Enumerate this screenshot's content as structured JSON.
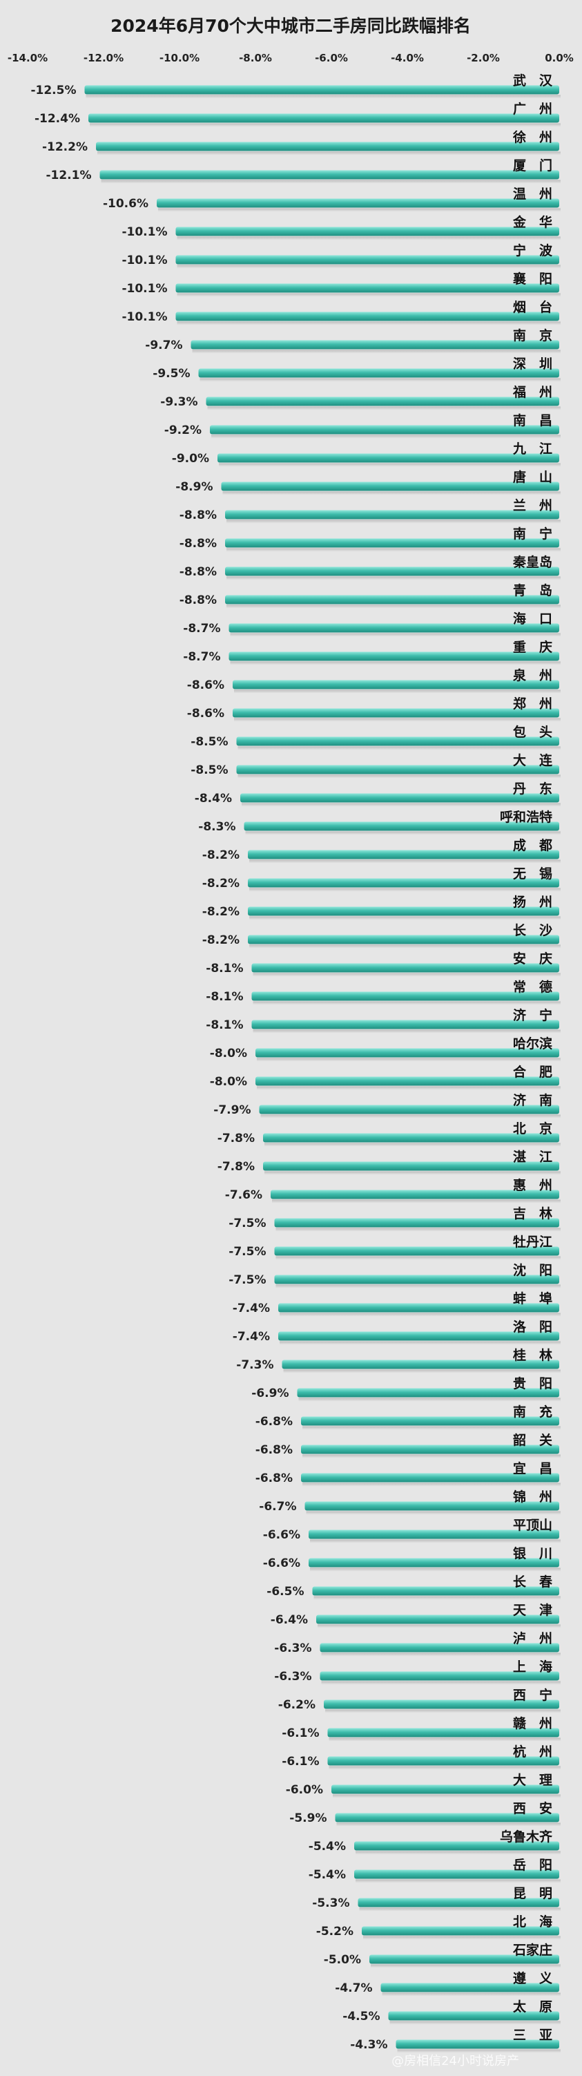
{
  "chart_data": {
    "type": "bar",
    "title": "2024年6月70个大中城市二手房同比跌幅排名",
    "orientation": "horizontal",
    "xlim": [
      -14,
      0
    ],
    "xticks": [
      "-14.0%",
      "-12.0%",
      "-10.0%",
      "-8.0%",
      "-6.0%",
      "-4.0%",
      "-2.0%",
      "0.0%"
    ],
    "grid": false,
    "colors": {
      "bar": "#3dbcab",
      "bar_light": "#7fe0d2",
      "bar_dark": "#1f8e80"
    },
    "categories": [
      "武　汉",
      "广　州",
      "徐　州",
      "厦　门",
      "温　州",
      "金　华",
      "宁　波",
      "襄　阳",
      "烟　台",
      "南　京",
      "深　圳",
      "福　州",
      "南　昌",
      "九　江",
      "唐　山",
      "兰　州",
      "南　宁",
      "秦皇岛",
      "青　岛",
      "海　口",
      "重　庆",
      "泉　州",
      "郑　州",
      "包　头",
      "大　连",
      "丹　东",
      "呼和浩特",
      "成　都",
      "无　锡",
      "扬　州",
      "长　沙",
      "安　庆",
      "常　德",
      "济　宁",
      "哈尔滨",
      "合　肥",
      "济　南",
      "北　京",
      "湛　江",
      "惠　州",
      "吉　林",
      "牡丹江",
      "沈　阳",
      "蚌　埠",
      "洛　阳",
      "桂　林",
      "贵　阳",
      "南　充",
      "韶　关",
      "宜　昌",
      "锦　州",
      "平顶山",
      "银　川",
      "长　春",
      "天　津",
      "泸　州",
      "上　海",
      "西　宁",
      "赣　州",
      "杭　州",
      "大　理",
      "西　安",
      "乌鲁木齐",
      "岳　阳",
      "昆　明",
      "北　海",
      "石家庄",
      "遵　义",
      "太　原",
      "三　亚"
    ],
    "values": [
      -12.5,
      -12.4,
      -12.2,
      -12.1,
      -10.6,
      -10.1,
      -10.1,
      -10.1,
      -10.1,
      -9.7,
      -9.5,
      -9.3,
      -9.2,
      -9.0,
      -8.9,
      -8.8,
      -8.8,
      -8.8,
      -8.8,
      -8.7,
      -8.7,
      -8.6,
      -8.6,
      -8.5,
      -8.5,
      -8.4,
      -8.3,
      -8.2,
      -8.2,
      -8.2,
      -8.2,
      -8.1,
      -8.1,
      -8.1,
      -8.0,
      -8.0,
      -7.9,
      -7.8,
      -7.8,
      -7.6,
      -7.5,
      -7.5,
      -7.5,
      -7.4,
      -7.4,
      -7.3,
      -6.9,
      -6.8,
      -6.8,
      -6.8,
      -6.7,
      -6.6,
      -6.6,
      -6.5,
      -6.4,
      -6.3,
      -6.3,
      -6.2,
      -6.1,
      -6.1,
      -6.0,
      -5.9,
      -5.4,
      -5.4,
      -5.3,
      -5.2,
      -5.0,
      -4.7,
      -4.5,
      -4.3
    ],
    "data_labels": [
      "-12.5%",
      "-12.4%",
      "-12.2%",
      "-12.1%",
      "-10.6%",
      "-10.1%",
      "-10.1%",
      "-10.1%",
      "-10.1%",
      "-9.7%",
      "-9.5%",
      "-9.3%",
      "-9.2%",
      "-9.0%",
      "-8.9%",
      "-8.8%",
      "-8.8%",
      "-8.8%",
      "-8.8%",
      "-8.7%",
      "-8.7%",
      "-8.6%",
      "-8.6%",
      "-8.5%",
      "-8.5%",
      "-8.4%",
      "-8.3%",
      "-8.2%",
      "-8.2%",
      "-8.2%",
      "-8.2%",
      "-8.1%",
      "-8.1%",
      "-8.1%",
      "-8.0%",
      "-8.0%",
      "-7.9%",
      "-7.8%",
      "-7.8%",
      "-7.6%",
      "-7.5%",
      "-7.5%",
      "-7.5%",
      "-7.4%",
      "-7.4%",
      "-7.3%",
      "-6.9%",
      "-6.8%",
      "-6.8%",
      "-6.8%",
      "-6.7%",
      "-6.6%",
      "-6.6%",
      "-6.5%",
      "-6.4%",
      "-6.3%",
      "-6.3%",
      "-6.2%",
      "-6.1%",
      "-6.1%",
      "-6.0%",
      "-5.9%",
      "-5.4%",
      "-5.4%",
      "-5.3%",
      "-5.2%",
      "-5.0%",
      "-4.7%",
      "-4.5%",
      "-4.3%"
    ]
  },
  "watermark": "@房相信24小时说房产"
}
